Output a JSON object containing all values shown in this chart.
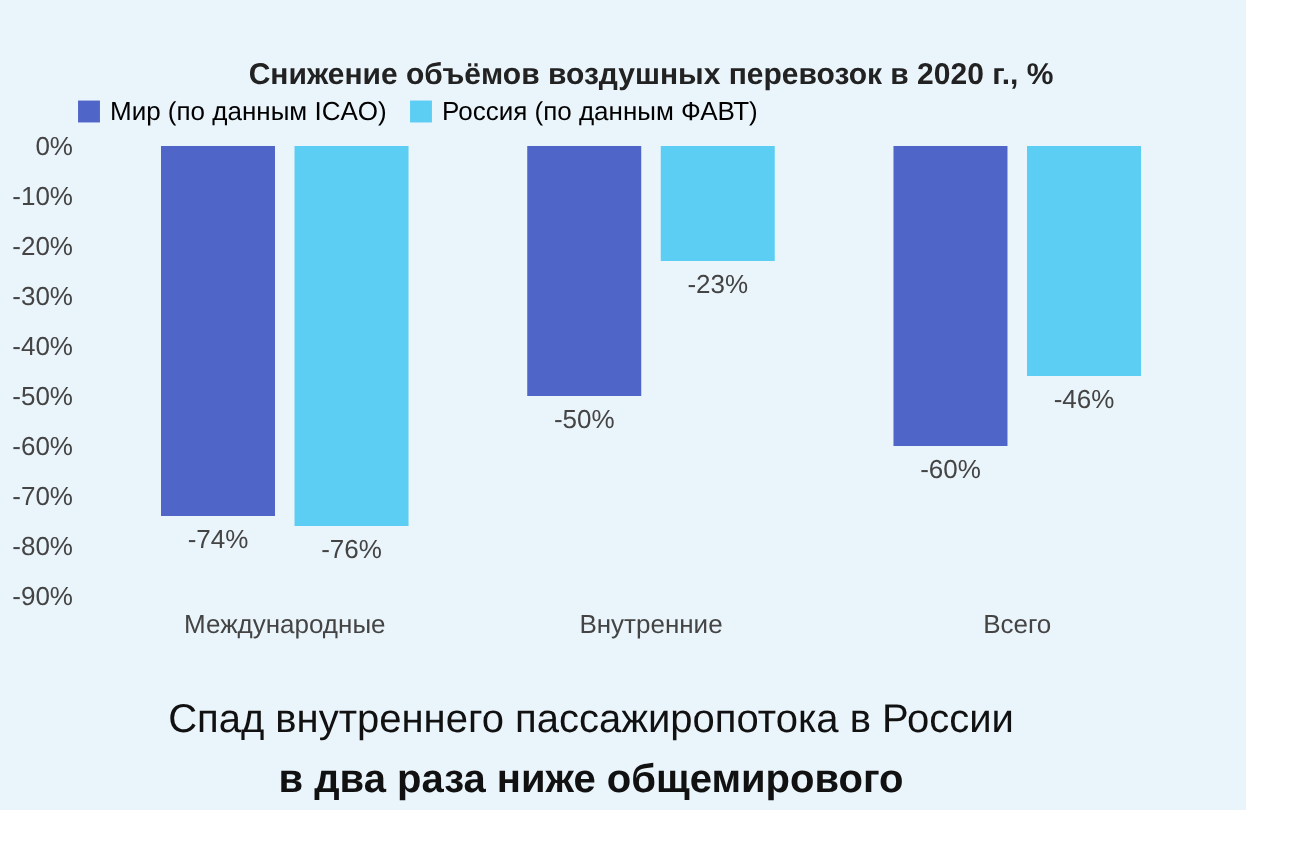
{
  "chart_data": {
    "type": "bar",
    "title": "Снижение объёмов воздушных перевозок в 2020 г., %",
    "categories": [
      "Международные",
      "Внутренние",
      "Всего"
    ],
    "series": [
      {
        "name": "Мир (по данным ICAO)",
        "color": "#5065c8",
        "values": [
          -74,
          -50,
          -60
        ],
        "value_labels": [
          "-74%",
          "-50%",
          "-60%"
        ]
      },
      {
        "name": "Россия (по данным ФАВТ)",
        "color": "#5ccdf3",
        "values": [
          -76,
          -23,
          -46
        ],
        "value_labels": [
          "-76%",
          "-23%",
          "-46%"
        ]
      }
    ],
    "ylim": [
      -90,
      0
    ],
    "yticks": [
      {
        "value": 0,
        "label": "0%"
      },
      {
        "value": -10,
        "label": "-10%"
      },
      {
        "value": -20,
        "label": "-20%"
      },
      {
        "value": -30,
        "label": "-30%"
      },
      {
        "value": -40,
        "label": "-40%"
      },
      {
        "value": -50,
        "label": "-50%"
      },
      {
        "value": -60,
        "label": "-60%"
      },
      {
        "value": -70,
        "label": "-70%"
      },
      {
        "value": -80,
        "label": "-80%"
      },
      {
        "value": -90,
        "label": "-90%"
      }
    ],
    "grid": false,
    "legend": "top",
    "annotations": [
      "Спад внутреннего пассажиропотока в России",
      "в два раза ниже общемирового"
    ]
  }
}
